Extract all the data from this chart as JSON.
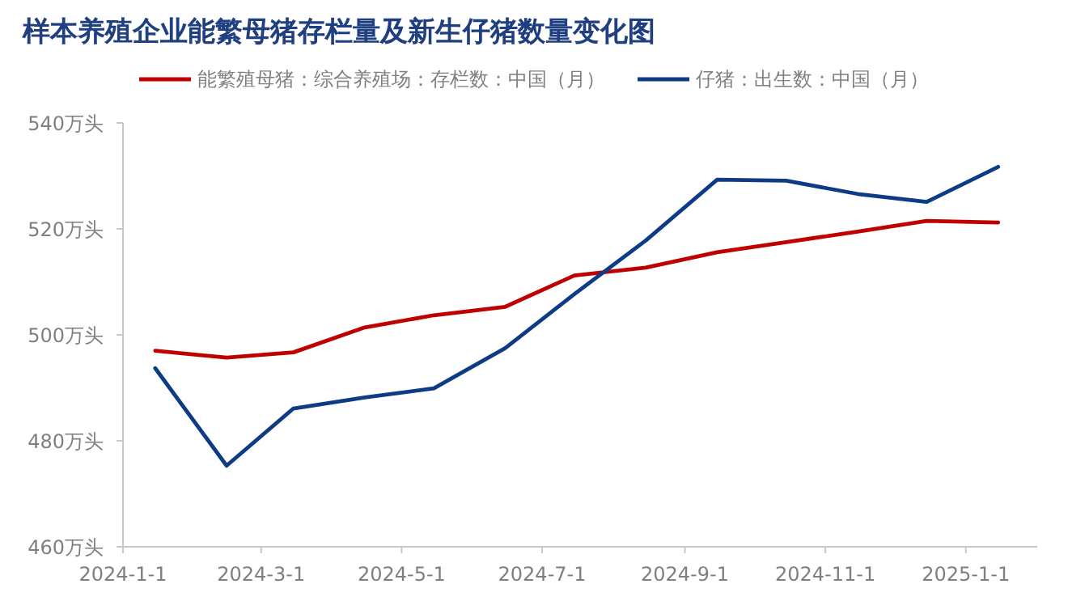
{
  "chart_data": {
    "type": "line",
    "title": "样本养殖企业能繁母猪存栏量及新生仔猪数量变化图",
    "x": [
      "2024-01-15",
      "2024-02-15",
      "2024-03-15",
      "2024-04-15",
      "2024-05-15",
      "2024-06-15",
      "2024-07-15",
      "2024-08-15",
      "2024-09-15",
      "2024-10-15",
      "2024-11-15",
      "2024-12-15",
      "2025-01-15"
    ],
    "series": [
      {
        "name": "能繁殖母猪：综合养殖场：存栏数：中国（月）",
        "color": "#c00000",
        "values": [
          497.0,
          495.7,
          496.7,
          501.4,
          503.7,
          505.3,
          511.2,
          512.7,
          515.6,
          517.5,
          519.5,
          521.5,
          521.2
        ]
      },
      {
        "name": "仔猪：出生数：中国（月）",
        "color": "#0d3b85",
        "values": [
          493.7,
          475.3,
          486.1,
          488.2,
          489.9,
          497.5,
          507.7,
          517.8,
          529.3,
          529.1,
          526.6,
          525.1,
          531.7
        ]
      }
    ],
    "xlim": [
      "2024-01-01",
      "2025-02-01"
    ],
    "xticks": [
      {
        "value": "2024-01-01",
        "label": "2024-1-1"
      },
      {
        "value": "2024-03-01",
        "label": "2024-3-1"
      },
      {
        "value": "2024-05-01",
        "label": "2024-5-1"
      },
      {
        "value": "2024-07-01",
        "label": "2024-7-1"
      },
      {
        "value": "2024-09-01",
        "label": "2024-9-1"
      },
      {
        "value": "2024-11-01",
        "label": "2024-11-1"
      },
      {
        "value": "2025-01-01",
        "label": "2025-1-1"
      }
    ],
    "ylim": [
      460,
      540
    ],
    "yticks": [
      {
        "value": 460,
        "label": "460万头"
      },
      {
        "value": 480,
        "label": "480万头"
      },
      {
        "value": 500,
        "label": "500万头"
      },
      {
        "value": 520,
        "label": "520万头"
      },
      {
        "value": 540,
        "label": "540万头"
      }
    ],
    "grid": false,
    "legend": "top",
    "marker": "none",
    "line_style": "solid"
  }
}
